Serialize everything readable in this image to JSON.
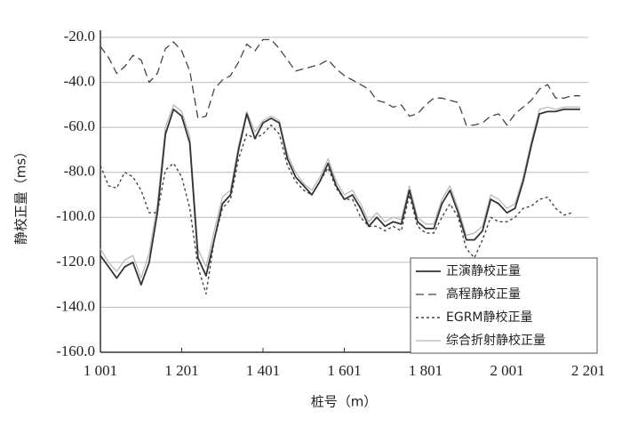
{
  "chart_data": {
    "type": "line",
    "y_label": "静校正量（ms）",
    "x_label": "桩号（m）",
    "x": [
      1001,
      1021,
      1041,
      1061,
      1081,
      1101,
      1121,
      1141,
      1161,
      1181,
      1201,
      1221,
      1241,
      1261,
      1281,
      1301,
      1321,
      1341,
      1361,
      1381,
      1401,
      1421,
      1441,
      1461,
      1481,
      1501,
      1521,
      1541,
      1561,
      1581,
      1601,
      1621,
      1641,
      1661,
      1681,
      1701,
      1721,
      1741,
      1761,
      1781,
      1801,
      1821,
      1841,
      1861,
      1881,
      1901,
      1921,
      1941,
      1961,
      1981,
      2001,
      2021,
      2041,
      2061,
      2081,
      2101,
      2121,
      2141,
      2161,
      2181
    ],
    "series": [
      {
        "name": "正演静校正量",
        "color": "#333333",
        "dash": "none",
        "width": 1.8,
        "values": [
          -117,
          -122,
          -127,
          -122,
          -120,
          -130,
          -120,
          -98,
          -63,
          -52,
          -55,
          -67,
          -118,
          -126,
          -110,
          -94,
          -90,
          -70,
          -54,
          -65,
          -58,
          -56,
          -58,
          -74,
          -82,
          -86,
          -90,
          -84,
          -76,
          -86,
          -92,
          -90,
          -96,
          -104,
          -100,
          -104,
          -102,
          -103,
          -88,
          -102,
          -105,
          -105,
          -94,
          -88,
          -98,
          -110,
          -110,
          -106,
          -92,
          -94,
          -98,
          -96,
          -84,
          -68,
          -54,
          -53,
          -53,
          -52,
          -52,
          -52
        ]
      },
      {
        "name": "高程静校正量",
        "color": "#444444",
        "dash": "9,5",
        "width": 1.3,
        "values": [
          -24,
          -29,
          -36,
          -33,
          -28,
          -30,
          -40,
          -36,
          -25,
          -22,
          -26,
          -35,
          -56,
          -55,
          -43,
          -39,
          -37,
          -31,
          -23,
          -26,
          -21,
          -21,
          -25,
          -30,
          -35,
          -34,
          -33,
          -32,
          -30,
          -34,
          -37,
          -39,
          -41,
          -43,
          -48,
          -49,
          -51,
          -50,
          -55,
          -54,
          -50,
          -47,
          -47,
          -48,
          -49,
          -59,
          -59,
          -58,
          -55,
          -54,
          -59,
          -54,
          -51,
          -48,
          -43,
          -41,
          -47,
          -47,
          -46,
          -46
        ]
      },
      {
        "name": "EGRM静校正量",
        "color": "#444444",
        "dash": "3,3",
        "width": 1.4,
        "values": [
          -77,
          -86,
          -87,
          -80,
          -82,
          -88,
          -98,
          -98,
          -79,
          -76,
          -82,
          -96,
          -122,
          -134,
          -110,
          -96,
          -92,
          -74,
          -63,
          -65,
          -63,
          -59,
          -63,
          -77,
          -84,
          -88,
          -90,
          -84,
          -78,
          -87,
          -92,
          -92,
          -100,
          -104,
          -104,
          -106,
          -104,
          -106,
          -90,
          -104,
          -107,
          -107,
          -100,
          -94,
          -100,
          -114,
          -118,
          -110,
          -100,
          -102,
          -102,
          -100,
          -96,
          -95,
          -92,
          -91,
          -96,
          -99,
          -98,
          null
        ]
      },
      {
        "name": "综合折射静校正量",
        "color": "#b5b5b5",
        "dash": "none",
        "width": 1.2,
        "values": [
          -114,
          -120,
          -124,
          -119,
          -117,
          -127,
          -116,
          -94,
          -60,
          -50,
          -53,
          -64,
          -114,
          -122,
          -106,
          -91,
          -88,
          -68,
          -53,
          -62,
          -57,
          -55,
          -57,
          -72,
          -80,
          -85,
          -88,
          -82,
          -74,
          -84,
          -90,
          -88,
          -94,
          -102,
          -98,
          -102,
          -100,
          -101,
          -86,
          -100,
          -103,
          -103,
          -92,
          -86,
          -96,
          -108,
          -107,
          -104,
          -90,
          -92,
          -96,
          -94,
          -82,
          -66,
          -52,
          -51,
          -52,
          -51,
          -51,
          -51
        ]
      }
    ],
    "xlim": [
      1001,
      2201
    ],
    "xticks": [
      {
        "value": 1001,
        "label": "1 001"
      },
      {
        "value": 1201,
        "label": "1 201"
      },
      {
        "value": 1401,
        "label": "1 401"
      },
      {
        "value": 1601,
        "label": "1 601"
      },
      {
        "value": 1801,
        "label": "1 801"
      },
      {
        "value": 2001,
        "label": "2 001"
      },
      {
        "value": 2201,
        "label": "2 201"
      }
    ],
    "ylim": [
      -160,
      -20
    ],
    "yticks": [
      {
        "value": -20,
        "label": "-20.0"
      },
      {
        "value": -40,
        "label": "-40.0"
      },
      {
        "value": -60,
        "label": "-60.0"
      },
      {
        "value": -80,
        "label": "-80.0"
      },
      {
        "value": -100,
        "label": "-100.0"
      },
      {
        "value": -120,
        "label": "-120.0"
      },
      {
        "value": -140,
        "label": "-140.0"
      },
      {
        "value": -160,
        "label": "-160.0"
      }
    ],
    "grid": true,
    "legend": "lower right"
  }
}
